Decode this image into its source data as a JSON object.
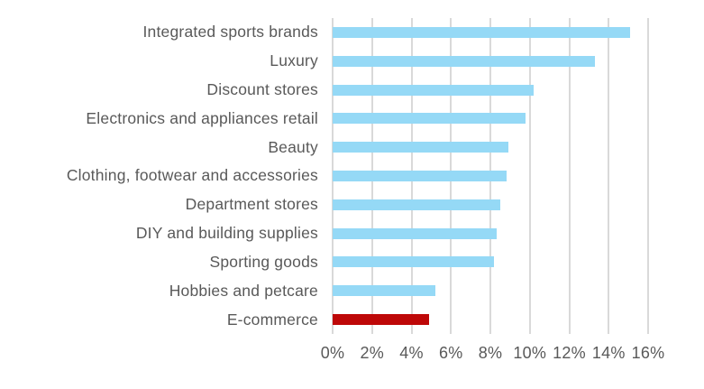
{
  "chart_data": {
    "type": "bar",
    "orientation": "horizontal",
    "title": "",
    "xlabel": "",
    "ylabel": "",
    "categories": [
      "Integrated sports brands",
      "Luxury",
      "Discount stores",
      "Electronics and appliances retail",
      "Beauty",
      "Clothing, footwear and accessories",
      "Department stores",
      "DIY and building supplies",
      "Sporting goods",
      "Hobbies and petcare",
      "E-commerce"
    ],
    "values": [
      15.1,
      13.3,
      10.2,
      9.8,
      8.9,
      8.8,
      8.5,
      8.3,
      8.2,
      5.2,
      4.9
    ],
    "unit": "%",
    "highlight_category": "E-commerce",
    "bar_color": "#95D9F6",
    "highlight_color": "#BE0808",
    "xlim": [
      0,
      16
    ],
    "x_tick_step": 2,
    "x_tick_labels": [
      "0%",
      "2%",
      "4%",
      "6%",
      "8%",
      "10%",
      "12%",
      "14%",
      "16%"
    ],
    "grid": true,
    "gridline_color": "#D9D9D9",
    "text_color": "#595959",
    "legend": "none"
  }
}
